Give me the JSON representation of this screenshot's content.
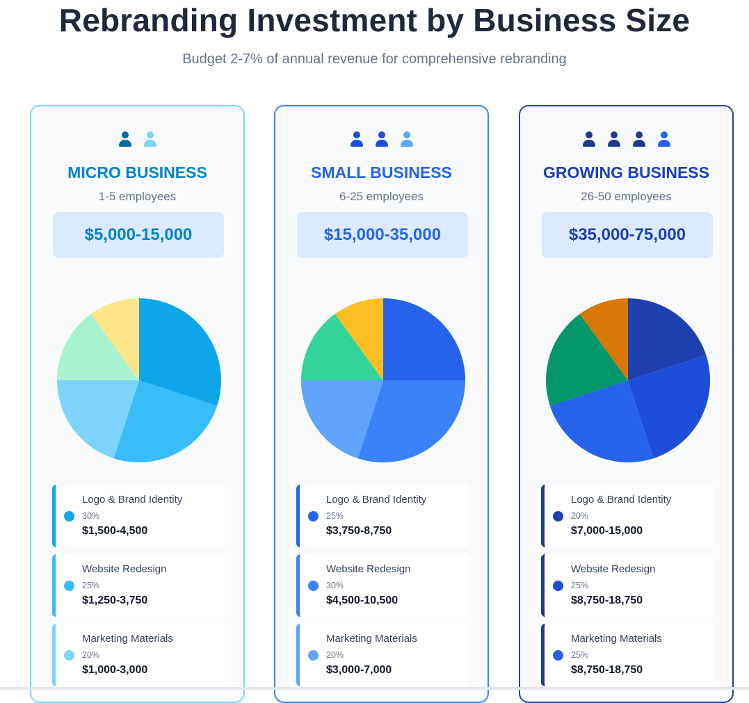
{
  "header": {
    "title": "Rebranding Investment by Business Size",
    "subtitle": "Budget 2-7% of annual revenue for comprehensive rebranding"
  },
  "chart_data": [
    {
      "type": "pie",
      "tier": "MICRO BUSINESS",
      "employees": "1-5 employees",
      "budget": "$5,000-15,000",
      "border_color": "#7dd3fc",
      "accent": "#0284c7",
      "people_colors": [
        "#0369a1",
        "#7dd3fc"
      ],
      "categories": [
        "Logo & Brand Identity",
        "Website Redesign",
        "Marketing Materials",
        "",
        ""
      ],
      "values": [
        30,
        25,
        20,
        15,
        10
      ],
      "colors": [
        "#0ea5e9",
        "#38bdf8",
        "#7dd3fc",
        "#a7f3d0",
        "#fde68a"
      ],
      "items": [
        {
          "name": "Logo & Brand Identity",
          "pct": "30%",
          "amount": "$1,500-4,500",
          "color": "#0ea5e9",
          "bar": "#0ea5e9"
        },
        {
          "name": "Website Redesign",
          "pct": "25%",
          "amount": "$1,250-3,750",
          "color": "#38bdf8",
          "bar": "#38bdf8"
        },
        {
          "name": "Marketing Materials",
          "pct": "20%",
          "amount": "$1,000-3,000",
          "color": "#7dd3fc",
          "bar": "#7dd3fc"
        }
      ]
    },
    {
      "type": "pie",
      "tier": "SMALL BUSINESS",
      "employees": "6-25 employees",
      "budget": "$15,000-35,000",
      "border_color": "#3b82f6",
      "accent": "#2563eb",
      "people_colors": [
        "#1d4ed8",
        "#1d4ed8",
        "#60a5fa"
      ],
      "categories": [
        "Logo & Brand Identity",
        "Website Redesign",
        "Marketing Materials",
        "",
        ""
      ],
      "values": [
        25,
        30,
        20,
        15,
        10
      ],
      "colors": [
        "#2563eb",
        "#3b82f6",
        "#60a5fa",
        "#34d399",
        "#fbbf24"
      ],
      "items": [
        {
          "name": "Logo & Brand Identity",
          "pct": "25%",
          "amount": "$3,750-8,750",
          "color": "#2563eb",
          "bar": "#2563eb"
        },
        {
          "name": "Website Redesign",
          "pct": "30%",
          "amount": "$4,500-10,500",
          "color": "#3b82f6",
          "bar": "#3b82f6"
        },
        {
          "name": "Marketing Materials",
          "pct": "20%",
          "amount": "$3,000-7,000",
          "color": "#60a5fa",
          "bar": "#60a5fa"
        }
      ]
    },
    {
      "type": "pie",
      "tier": "GROWING BUSINESS",
      "employees": "26-50 employees",
      "budget": "$35,000-75,000",
      "border_color": "#1e40af",
      "accent": "#1e40af",
      "people_colors": [
        "#1e3a8a",
        "#1e3a8a",
        "#1e3a8a",
        "#2563eb"
      ],
      "categories": [
        "Logo & Brand Identity",
        "Website Redesign",
        "Marketing Materials",
        "",
        ""
      ],
      "values": [
        20,
        25,
        25,
        20,
        10
      ],
      "colors": [
        "#1e40af",
        "#1d4ed8",
        "#2563eb",
        "#059669",
        "#d97706"
      ],
      "items": [
        {
          "name": "Logo & Brand Identity",
          "pct": "20%",
          "amount": "$7,000-15,000",
          "color": "#1e40af",
          "bar": "#1e3a8a"
        },
        {
          "name": "Website Redesign",
          "pct": "25%",
          "amount": "$8,750-18,750",
          "color": "#1d4ed8",
          "bar": "#1e3a8a"
        },
        {
          "name": "Marketing Materials",
          "pct": "25%",
          "amount": "$8,750-18,750",
          "color": "#2563eb",
          "bar": "#1e3a8a"
        }
      ]
    }
  ]
}
